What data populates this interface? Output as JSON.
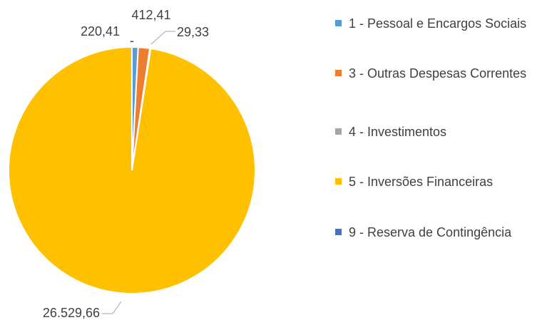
{
  "chart_data": {
    "type": "pie",
    "categories": [
      "1 - Pessoal e Encargos Sociais",
      "3 - Outras Despesas Correntes",
      "4 - Investimentos",
      "5 - Inversões Financeiras",
      "9 - Reserva de Contingência"
    ],
    "values": [
      220.41,
      412.41,
      29.33,
      26529.66,
      0
    ],
    "value_labels": [
      "220,41",
      "412,41",
      "29,33",
      "26.529,66",
      "-"
    ],
    "colors": [
      "#5b9bd5",
      "#ed7d31",
      "#a5a5a5",
      "#ffc000",
      "#4472c4"
    ],
    "legend": "right"
  }
}
